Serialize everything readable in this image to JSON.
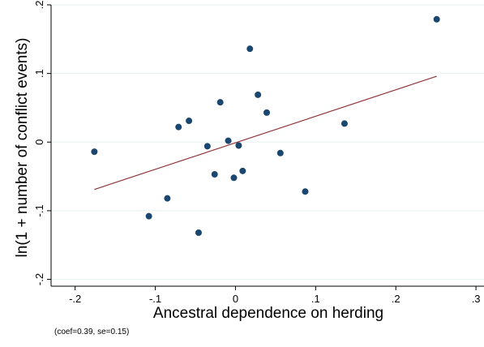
{
  "chart_data": {
    "type": "scatter",
    "title": "",
    "xlabel": "Ancestral dependence on herding",
    "ylabel": "ln(1 + number of conflict events)",
    "note": "(coef=0.39, se=0.15)",
    "xlim": [
      -0.23,
      0.31
    ],
    "ylim": [
      -0.21,
      0.2
    ],
    "xticks": [
      -0.2,
      -0.1,
      0,
      0.1,
      0.2,
      0.3
    ],
    "xtick_labels": [
      "-.2",
      "-.1",
      "0",
      ".1",
      ".2",
      ".3"
    ],
    "yticks": [
      -0.2,
      -0.1,
      0,
      0.1,
      0.2
    ],
    "ytick_labels": [
      "-.2",
      "-.1",
      "0",
      ".1",
      ".2"
    ],
    "grid": true,
    "legend": "none",
    "marker_color": "#1a476f",
    "line_color": "#90353b",
    "points": [
      {
        "x": -0.176,
        "y": -0.014
      },
      {
        "x": -0.108,
        "y": -0.108
      },
      {
        "x": -0.085,
        "y": -0.082
      },
      {
        "x": -0.071,
        "y": 0.022
      },
      {
        "x": -0.058,
        "y": 0.031
      },
      {
        "x": -0.046,
        "y": -0.132
      },
      {
        "x": -0.035,
        "y": -0.006
      },
      {
        "x": -0.026,
        "y": -0.047
      },
      {
        "x": -0.019,
        "y": 0.058
      },
      {
        "x": -0.009,
        "y": 0.002
      },
      {
        "x": -0.002,
        "y": -0.052
      },
      {
        "x": 0.004,
        "y": -0.005
      },
      {
        "x": 0.009,
        "y": -0.042
      },
      {
        "x": 0.018,
        "y": 0.136
      },
      {
        "x": 0.028,
        "y": 0.069
      },
      {
        "x": 0.039,
        "y": 0.043
      },
      {
        "x": 0.056,
        "y": -0.016
      },
      {
        "x": 0.087,
        "y": -0.072
      },
      {
        "x": 0.136,
        "y": 0.027
      },
      {
        "x": 0.251,
        "y": 0.179
      }
    ],
    "fit_line": {
      "x": [
        -0.176,
        0.251
      ],
      "y": [
        -0.069,
        0.096
      ]
    }
  }
}
